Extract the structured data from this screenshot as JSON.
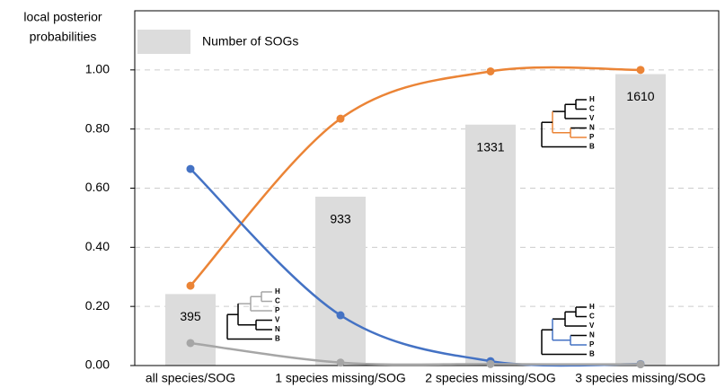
{
  "chart_data": {
    "type": "line",
    "ylabel": [
      "local posterior",
      "probabilities"
    ],
    "categories": [
      "all species/SOG",
      "1 species missing/SOG",
      "2 species missing/SOG",
      "3 species missing/SOG"
    ],
    "ylim": [
      0,
      1.2
    ],
    "yticks": [
      {
        "value": 0,
        "label": "0.00"
      },
      {
        "value": 0.2,
        "label": "0.20"
      },
      {
        "value": 0.4,
        "label": "0.40"
      },
      {
        "value": 0.6,
        "label": "0.60"
      },
      {
        "value": 0.8,
        "label": "0.80"
      },
      {
        "value": 1.0,
        "label": "1.00"
      }
    ],
    "grid": true,
    "bars": {
      "name": "Number of SOGs",
      "color": "#dcdcdc",
      "values": [
        395,
        933,
        1331,
        1610
      ]
    },
    "y2lim": [
      0,
      1960
    ],
    "series": [
      {
        "color": "#eb8436",
        "values": [
          0.27,
          0.835,
          0.995,
          1.0
        ]
      },
      {
        "color": "#4472c4",
        "values": [
          0.665,
          0.17,
          0.015,
          0.005
        ]
      },
      {
        "color": "#a6a6a6",
        "values": [
          0.076,
          0.01,
          0.005,
          0.004
        ]
      }
    ],
    "trees": [
      {
        "leaves": [
          "H",
          "C",
          "P",
          "V",
          "N",
          "B"
        ],
        "color": "#a6a6a6"
      },
      {
        "leaves": [
          "H",
          "C",
          "V",
          "N",
          "P",
          "B"
        ],
        "color": "#eb8436"
      },
      {
        "leaves": [
          "H",
          "C",
          "V",
          "N",
          "P",
          "B"
        ],
        "color": "#4472c4"
      }
    ]
  }
}
